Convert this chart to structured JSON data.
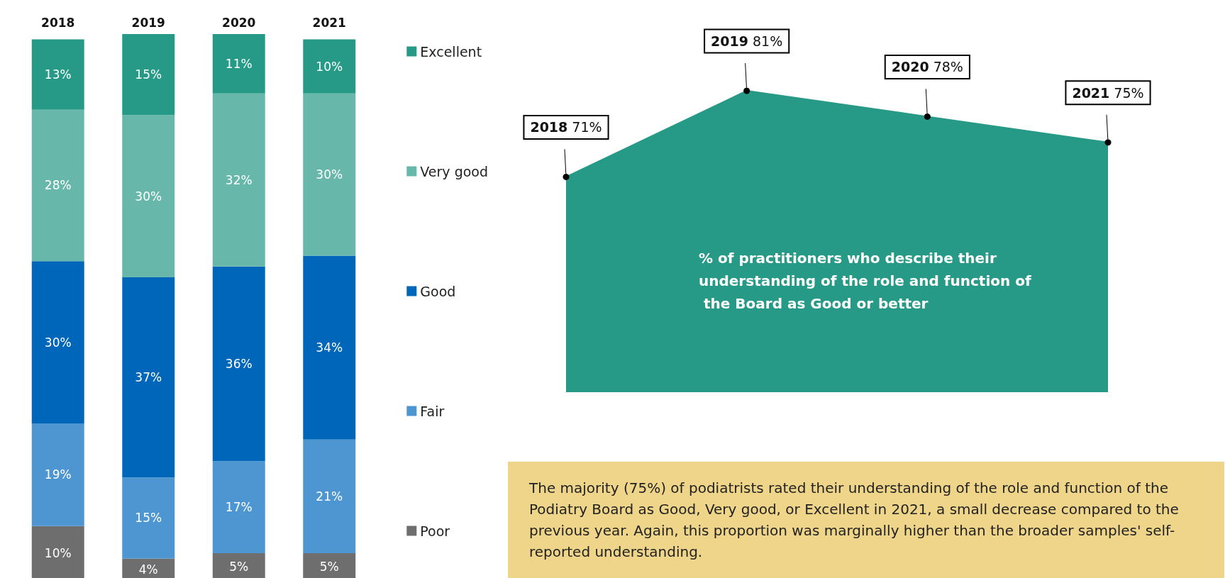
{
  "chart_data": [
    {
      "type": "bar",
      "stacked": true,
      "categories": [
        "2018",
        "2019",
        "2020",
        "2021"
      ],
      "tick_labels": "x",
      "legend": "right",
      "series": [
        {
          "name": "Poor",
          "color": "#6e6e6e",
          "values": [
            10,
            4,
            5,
            5
          ],
          "value_labels": [
            "10%",
            "4%",
            "5%",
            "5%"
          ]
        },
        {
          "name": "Fair",
          "color": "#4d96d2",
          "values": [
            19,
            15,
            17,
            21
          ],
          "value_labels": [
            "19%",
            "15%",
            "17%",
            "21%"
          ]
        },
        {
          "name": "Good",
          "color": "#0066b9",
          "values": [
            30,
            37,
            36,
            34
          ],
          "value_labels": [
            "30%",
            "37%",
            "36%",
            "34%"
          ]
        },
        {
          "name": "Very good",
          "color": "#67b8aa",
          "values": [
            28,
            30,
            32,
            30
          ],
          "value_labels": [
            "28%",
            "30%",
            "32%",
            "30%"
          ]
        },
        {
          "name": "Excellent",
          "color": "#279a87",
          "values": [
            13,
            15,
            11,
            10
          ],
          "value_labels": [
            "13%",
            "15%",
            "11%",
            "10%"
          ]
        }
      ]
    },
    {
      "type": "area",
      "categories": [
        null,
        null,
        null,
        null
      ],
      "values": [
        71,
        81,
        78,
        75
      ],
      "value_labels": [
        "2018 71%",
        "2019 81%",
        "2020 78%",
        "2021 75%"
      ],
      "color": "#279a87",
      "marker": "circle",
      "tick_labels": false,
      "title": "% of practitioners who describe their understanding of the role and function of the Board as Good or better",
      "annotations": [
        "The majority (75%) of podiatrists rated their understanding of the role and function of the Podiatry Board as Good, Very good, or Excellent in 2021, a small decrease compared to the previous year. Again, this proportion was marginally higher than the broader samples' self-reported understanding."
      ]
    }
  ]
}
